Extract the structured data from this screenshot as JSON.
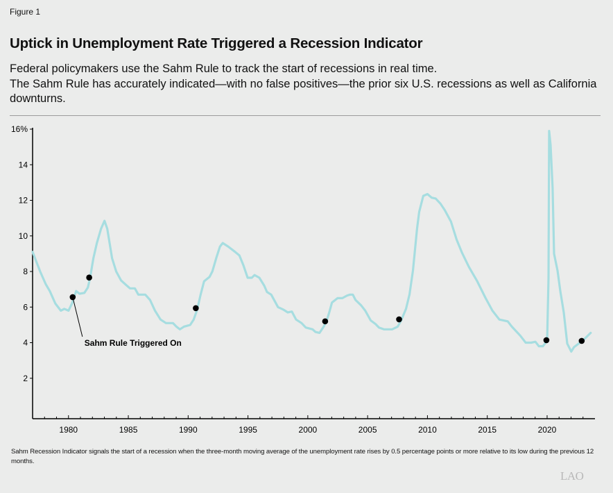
{
  "header": {
    "figure_label": "Figure 1",
    "title": "Uptick in Unemployment Rate Triggered a Recession Indicator",
    "subtitle_lines": [
      "Federal policymakers use the Sahm Rule to track the start of recessions in real time.",
      "The Sahm Rule has accurately indicated—with no false positives—the prior six U.S. recessions as well as California downturns."
    ]
  },
  "chart_data": {
    "type": "line",
    "title": "",
    "xlabel": "",
    "ylabel": "",
    "xlim": [
      1977.0,
      2024.0
    ],
    "ylim": [
      0,
      16
    ],
    "x_ticks": [
      "1980",
      "1985",
      "1990",
      "1995",
      "2000",
      "2005",
      "2010",
      "2015",
      "2020"
    ],
    "y_ticks": [
      "16%",
      "14",
      "12",
      "10",
      "8",
      "6",
      "4",
      "2"
    ],
    "y_tick_values": [
      16,
      14,
      12,
      10,
      8,
      6,
      4,
      2
    ],
    "grid": false,
    "line_color": "#a6dde0",
    "marker_color": "#000000",
    "series": [
      {
        "x": [
          1977.0,
          1977.63,
          1978.09,
          1978.44,
          1978.9,
          1979.36,
          1979.65,
          1980.0,
          1980.29,
          1980.64,
          1980.92,
          1981.33,
          1981.62,
          1981.79,
          1982.08,
          1982.37,
          1982.72,
          1983.01,
          1983.24,
          1983.64,
          1983.99,
          1984.39,
          1984.8,
          1985.14,
          1985.55,
          1985.84,
          1986.42,
          1986.82,
          1987.23,
          1987.69,
          1988.15,
          1988.73,
          1989.02,
          1989.31,
          1989.65,
          1990.17,
          1990.46,
          1990.75,
          1991.04,
          1991.33,
          1991.79,
          1992.02,
          1992.37,
          1992.66,
          1992.89,
          1993.35,
          1993.93,
          1994.28,
          1994.62,
          1994.97,
          1995.32,
          1995.55,
          1995.95,
          1996.36,
          1996.59,
          1996.94,
          1997.51,
          1997.98,
          1998.32,
          1998.67,
          1999.02,
          1999.48,
          1999.83,
          2000.4,
          2000.64,
          2000.98,
          2001.33,
          2001.56,
          2001.79,
          2002.02,
          2002.49,
          2002.89,
          2003.29,
          2003.53,
          2003.76,
          2003.99,
          2004.45,
          2004.8,
          2005.26,
          2005.66,
          2005.95,
          2006.36,
          2007.05,
          2007.51,
          2007.8,
          2008.21,
          2008.5,
          2008.79,
          2009.13,
          2009.31,
          2009.65,
          2010.0,
          2010.35,
          2010.69,
          2011.1,
          2011.45,
          2011.97,
          2012.43,
          2012.89,
          2013.47,
          2014.16,
          2014.86,
          2015.43,
          2016.01,
          2016.71,
          2017.05,
          2017.75,
          2018.21,
          2018.67,
          2019.02,
          2019.31,
          2019.65,
          2020.0,
          2020.12,
          2020.17,
          2020.29,
          2020.46,
          2020.58,
          2020.87,
          2021.1,
          2021.39,
          2021.68,
          2022.02,
          2022.25,
          2022.54,
          2022.83,
          2023.18,
          2023.64
        ],
        "y": [
          9.1,
          8.0,
          7.3,
          6.9,
          6.2,
          5.8,
          5.9,
          5.8,
          6.2,
          6.9,
          6.75,
          6.8,
          7.1,
          7.6,
          8.75,
          9.6,
          10.4,
          10.85,
          10.4,
          8.75,
          8.0,
          7.5,
          7.25,
          7.05,
          7.05,
          6.7,
          6.7,
          6.4,
          5.8,
          5.3,
          5.1,
          5.1,
          4.9,
          4.75,
          4.9,
          5.0,
          5.3,
          5.85,
          6.7,
          7.45,
          7.7,
          8.0,
          8.8,
          9.4,
          9.6,
          9.4,
          9.1,
          8.9,
          8.35,
          7.65,
          7.65,
          7.8,
          7.65,
          7.2,
          6.85,
          6.7,
          6.0,
          5.85,
          5.7,
          5.75,
          5.3,
          5.1,
          4.85,
          4.75,
          4.6,
          4.55,
          4.9,
          5.2,
          5.7,
          6.25,
          6.5,
          6.5,
          6.65,
          6.7,
          6.7,
          6.4,
          6.1,
          5.8,
          5.25,
          5.05,
          4.85,
          4.75,
          4.75,
          4.9,
          5.25,
          5.9,
          6.7,
          8.05,
          10.4,
          11.35,
          12.25,
          12.35,
          12.15,
          12.1,
          11.8,
          11.45,
          10.8,
          9.8,
          9.05,
          8.25,
          7.45,
          6.5,
          5.8,
          5.3,
          5.2,
          4.9,
          4.4,
          4.0,
          4.0,
          4.05,
          3.8,
          3.8,
          4.1,
          7.6,
          15.9,
          15.1,
          12.7,
          9.0,
          8.05,
          6.9,
          5.7,
          3.95,
          3.5,
          3.75,
          3.9,
          4.05,
          4.25,
          4.55
        ]
      }
    ],
    "markers": {
      "x": [
        1980.35,
        1981.73,
        1990.64,
        2001.45,
        2007.63,
        2019.94,
        2022.89
      ],
      "y": [
        6.56,
        7.66,
        5.94,
        5.2,
        5.31,
        4.14,
        4.1
      ]
    },
    "annotation": "Sahm Rule Triggered On"
  },
  "footnote": "Sahm Recession Indicator signals the start of a recession when the three-month moving average of the unemployment rate rises by 0.5 percentage points or more relative to its low during the previous 12 months.",
  "logo": "LAO"
}
